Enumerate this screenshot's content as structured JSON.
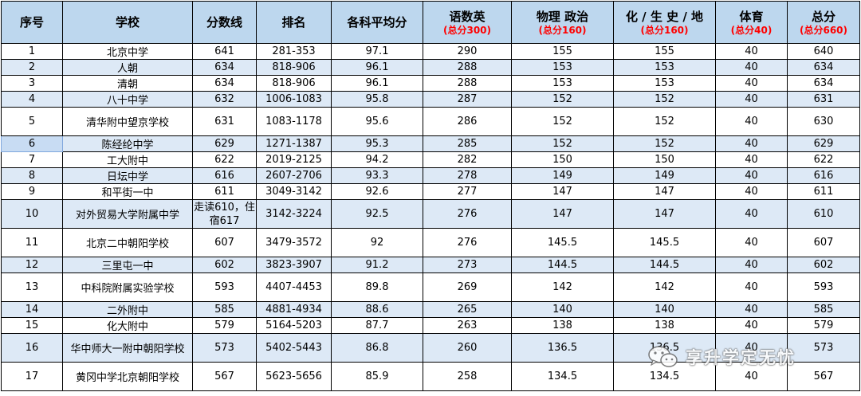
{
  "table": {
    "headers": [
      {
        "main": "序号",
        "sub": ""
      },
      {
        "main": "学校",
        "sub": ""
      },
      {
        "main": "分数线",
        "sub": ""
      },
      {
        "main": "排名",
        "sub": ""
      },
      {
        "main": "各科平均分",
        "sub": ""
      },
      {
        "main": "语数英",
        "sub": "(总分300)"
      },
      {
        "main": "物理 政治",
        "sub": "(总分160)"
      },
      {
        "main": "化 / 生 史 / 地",
        "sub": "(总分160)"
      },
      {
        "main": "体育",
        "sub": "(总分40)"
      },
      {
        "main": "总分",
        "sub": "(总分660)"
      }
    ],
    "rows": [
      [
        "1",
        "北京中学",
        "641",
        "281-353",
        "97.1",
        "290",
        "155",
        "155",
        "40",
        "640"
      ],
      [
        "2",
        "人朝",
        "634",
        "818-906",
        "96.1",
        "288",
        "153",
        "153",
        "40",
        "634"
      ],
      [
        "3",
        "清朝",
        "634",
        "818-906",
        "96.1",
        "288",
        "153",
        "153",
        "40",
        "634"
      ],
      [
        "4",
        "八十中学",
        "632",
        "1006-1083",
        "95.8",
        "287",
        "152",
        "152",
        "40",
        "631"
      ],
      [
        "5",
        "清华附中望京学校",
        "631",
        "1083-1178",
        "95.6",
        "286",
        "152",
        "152",
        "40",
        "630"
      ],
      [
        "6",
        "陈经纶中学",
        "629",
        "1271-1387",
        "95.3",
        "285",
        "152",
        "152",
        "40",
        "629"
      ],
      [
        "7",
        "工大附中",
        "622",
        "2019-2125",
        "94.2",
        "282",
        "150",
        "150",
        "40",
        "622"
      ],
      [
        "8",
        "日坛中学",
        "616",
        "2607-2706",
        "93.3",
        "278",
        "149",
        "149",
        "40",
        "616"
      ],
      [
        "9",
        "和平街一中",
        "611",
        "3049-3142",
        "92.6",
        "277",
        "147",
        "147",
        "40",
        "611"
      ],
      [
        "10",
        "对外贸易大学附属中学",
        "走读610，住宿617",
        "3142-3224",
        "92.5",
        "276",
        "147",
        "147",
        "40",
        "610"
      ],
      [
        "11",
        "北京二中朝阳学校",
        "607",
        "3479-3572",
        "92",
        "276",
        "145.5",
        "145.5",
        "40",
        "607"
      ],
      [
        "12",
        "三里屯一中",
        "602",
        "3823-3907",
        "91.2",
        "273",
        "144.5",
        "144.5",
        "40",
        "602"
      ],
      [
        "13",
        "中科院附属实验学校",
        "593",
        "4407-4453",
        "89.8",
        "269",
        "142",
        "142",
        "40",
        "593"
      ],
      [
        "14",
        "二外附中",
        "585",
        "4881-4934",
        "88.6",
        "265",
        "140",
        "140",
        "40",
        "585"
      ],
      [
        "15",
        "化大附中",
        "579",
        "5164-5203",
        "87.7",
        "263",
        "138",
        "138",
        "40",
        "579"
      ],
      [
        "16",
        "华中师大一附中朝阳学校",
        "573",
        "5402-5443",
        "86.8",
        "260",
        "136.5",
        "136.5",
        "40",
        "573"
      ],
      [
        "17",
        "黄冈中学北京朝阳学校",
        "567",
        "5623-5656",
        "85.9",
        "258",
        "134.5",
        "134.5",
        "40",
        "567"
      ]
    ]
  },
  "watermark": {
    "text": "享升学定无忧",
    "icon": "wechat-icon"
  },
  "colors": {
    "header_bg": "#bdd7ee",
    "alt_row_bg": "#dde9f6",
    "sub_header": "#ff0000"
  }
}
